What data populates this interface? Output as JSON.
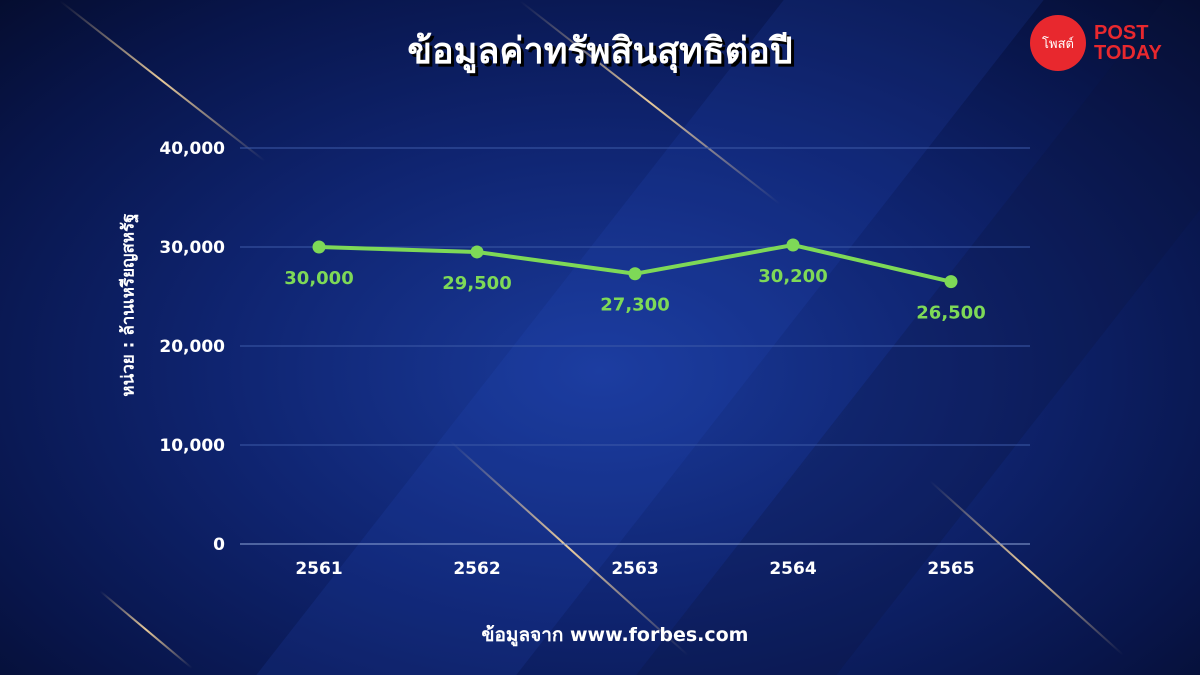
{
  "logo": {
    "thai_text": "โพสต์",
    "line1": "POST",
    "line2": "TODAY",
    "color": "#e8282e"
  },
  "source": "ข้อมูลจาก www.forbes.com",
  "chart_data": {
    "type": "line",
    "title": "ข้อมูลค่าทรัพสินสุทธิต่อปี",
    "xlabel": "",
    "ylabel": "หน่วย : ล้านเหรียญสหรัฐ",
    "categories": [
      "2561",
      "2562",
      "2563",
      "2564",
      "2565"
    ],
    "values": [
      30000,
      29500,
      27300,
      30200,
      26500
    ],
    "data_labels": [
      "30,000",
      "29,500",
      "27,300",
      "30,200",
      "26,500"
    ],
    "ylim": [
      0,
      40000
    ],
    "yticks": [
      0,
      10000,
      20000,
      30000,
      40000
    ],
    "ytick_labels": [
      "0",
      "10,000",
      "20,000",
      "30,000",
      "40,000"
    ],
    "grid": true,
    "line_color": "#7ed957"
  }
}
